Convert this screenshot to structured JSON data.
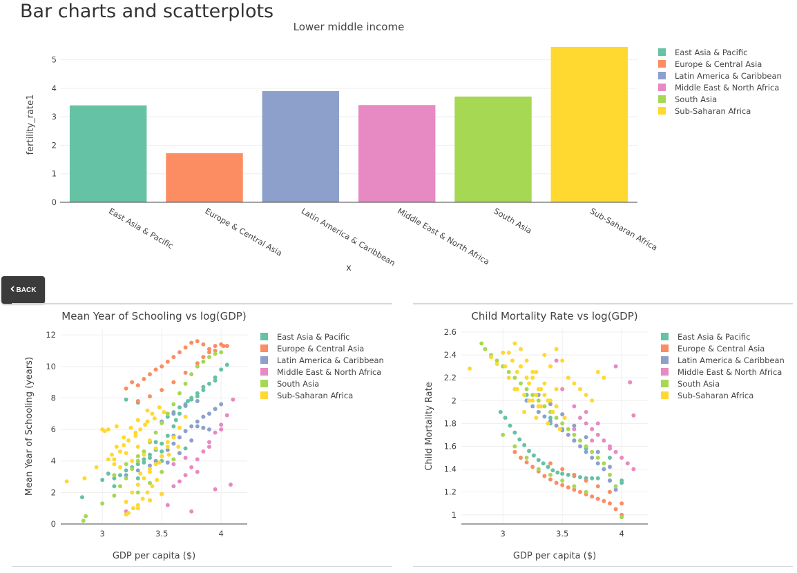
{
  "page": {
    "heading": "Bar charts and scatterplots"
  },
  "back_button": {
    "label": "BACK",
    "icon": "chevron-left-icon"
  },
  "colors": {
    "East Asia & Pacific": "#66c2a5",
    "Europe & Central Asia": "#fc8d62",
    "Latin America & Caribbean": "#8da0cb",
    "Middle East & North Africa": "#e78ac3",
    "South Asia": "#a6d854",
    "Sub-Saharan Africa": "#ffd92f"
  },
  "chart_data": [
    {
      "id": "bar",
      "type": "bar",
      "title": "Lower middle income",
      "xlabel": "x",
      "ylabel": "fertility_rate1",
      "categories": [
        "East Asia & Pacific",
        "Europe & Central Asia",
        "Latin America & Caribbean",
        "Middle East & North Africa",
        "South Asia",
        "Sub-Saharan Africa"
      ],
      "values": [
        3.4,
        1.72,
        3.9,
        3.41,
        3.71,
        5.45
      ],
      "ylim": [
        0,
        5.45
      ],
      "yticks": [
        0,
        1,
        2,
        3,
        4,
        5
      ],
      "legend": [
        "East Asia & Pacific",
        "Europe & Central Asia",
        "Latin America & Caribbean",
        "Middle East & North Africa",
        "South Asia",
        "Sub-Saharan Africa"
      ],
      "legend_position": "top-right",
      "grid": true
    },
    {
      "id": "schooling",
      "type": "scatter",
      "title": "Mean Year of Schooling vs log(GDP)",
      "xlabel": "GDP per capita ($)",
      "ylabel": "Mean Year of Schooling (years)",
      "xlim": [
        2.65,
        4.22
      ],
      "ylim": [
        0,
        12.4
      ],
      "xticks": [
        3,
        3.5,
        4
      ],
      "xtick_labels": [
        "3",
        "3.5",
        "4"
      ],
      "yticks": [
        0,
        2,
        4,
        6,
        8,
        10,
        12
      ],
      "legend": [
        "East Asia & Pacific",
        "Europe & Central Asia",
        "Latin America & Caribbean",
        "Middle East & North Africa",
        "South Asia",
        "Sub-Saharan Africa"
      ],
      "legend_position": "top-right",
      "grid": true,
      "series": [
        {
          "name": "East Asia & Pacific",
          "x": [
            2.83,
            3.0,
            3.05,
            3.1,
            3.15,
            3.2,
            3.25,
            3.3,
            3.35,
            3.4,
            3.45,
            3.5,
            3.55,
            3.6,
            3.62,
            3.65,
            3.7,
            3.72,
            3.75,
            3.8,
            3.85,
            3.9,
            3.95,
            4.0,
            3.2,
            3.3,
            3.4,
            3.5,
            3.6,
            3.7,
            3.8,
            3.35,
            3.45,
            3.55,
            3.65,
            3.75,
            3.85,
            3.95,
            4.05,
            3.1,
            3.3,
            3.5,
            3.7
          ],
          "y": [
            1.7,
            2.8,
            3.2,
            2.9,
            3.1,
            3.4,
            3.6,
            3.8,
            4.1,
            4.4,
            4.7,
            5.1,
            5.6,
            6.2,
            6.6,
            7.0,
            7.5,
            7.8,
            8.0,
            8.3,
            8.7,
            8.9,
            9.3,
            9.8,
            7.9,
            7.7,
            4.2,
            4.6,
            7.1,
            7.6,
            8.1,
            3.9,
            5.2,
            6.8,
            7.4,
            7.9,
            8.5,
            9.1,
            10.1,
            2.4,
            2.9,
            4.0,
            4.8
          ]
        },
        {
          "name": "Europe & Central Asia",
          "x": [
            3.2,
            3.25,
            3.3,
            3.35,
            3.4,
            3.45,
            3.5,
            3.55,
            3.6,
            3.65,
            3.7,
            3.75,
            3.8,
            3.85,
            3.9,
            3.95,
            4.0,
            4.02,
            4.05,
            3.3,
            3.4,
            3.5,
            3.6,
            3.7,
            3.8,
            3.85,
            3.9,
            3.95
          ],
          "y": [
            8.6,
            9.0,
            8.8,
            9.2,
            9.5,
            9.8,
            10.0,
            10.3,
            10.6,
            10.9,
            11.2,
            11.5,
            11.6,
            11.4,
            11.1,
            11.3,
            11.4,
            11.3,
            11.3,
            7.8,
            8.1,
            8.5,
            9.0,
            9.6,
            10.2,
            10.6,
            10.9,
            11.0
          ]
        },
        {
          "name": "Latin America & Caribbean",
          "x": [
            3.2,
            3.3,
            3.4,
            3.45,
            3.5,
            3.55,
            3.6,
            3.65,
            3.7,
            3.75,
            3.8,
            3.85,
            3.9,
            3.95,
            4.0,
            3.5,
            3.6,
            3.7,
            3.8,
            3.9,
            3.55,
            3.65,
            3.75,
            3.85,
            3.4,
            3.6,
            3.8
          ],
          "y": [
            3.1,
            3.4,
            3.7,
            4.0,
            4.3,
            4.7,
            5.1,
            5.5,
            5.9,
            6.2,
            6.5,
            6.8,
            7.0,
            7.3,
            7.6,
            6.5,
            7.0,
            7.5,
            7.8,
            6.0,
            3.9,
            4.5,
            5.3,
            6.1,
            5.2,
            5.6,
            6.2
          ]
        },
        {
          "name": "Middle East & North Africa",
          "x": [
            3.2,
            3.3,
            3.4,
            3.5,
            3.6,
            3.65,
            3.7,
            3.75,
            3.8,
            3.85,
            3.9,
            3.95,
            4.0,
            4.05,
            4.1,
            3.6,
            3.7,
            3.8,
            3.9,
            4.0,
            3.55,
            3.75,
            3.95,
            4.08
          ],
          "y": [
            0.8,
            1.0,
            1.5,
            1.9,
            2.4,
            2.7,
            3.1,
            3.6,
            4.1,
            4.6,
            5.2,
            5.8,
            6.3,
            6.9,
            7.9,
            3.8,
            4.2,
            3.3,
            4.9,
            6.0,
            1.2,
            0.8,
            2.2,
            2.5
          ]
        },
        {
          "name": "South Asia",
          "x": [
            2.84,
            2.86,
            3.0,
            3.1,
            3.15,
            3.2,
            3.25,
            3.3,
            3.35,
            3.4,
            3.45,
            3.5,
            3.55,
            3.6,
            3.65,
            3.7,
            3.75,
            3.8,
            3.85,
            3.9,
            3.95,
            4.0,
            3.3,
            3.4,
            3.5,
            3.6,
            3.1,
            3.2,
            3.3
          ],
          "y": [
            0.2,
            0.5,
            1.3,
            1.8,
            2.4,
            2.9,
            3.5,
            4.0,
            4.6,
            5.2,
            5.8,
            6.4,
            7.0,
            7.6,
            8.3,
            8.9,
            9.5,
            10.0,
            10.3,
            10.6,
            10.8,
            10.9,
            2.0,
            2.6,
            3.3,
            4.1,
            3.1,
            3.8,
            4.3
          ]
        },
        {
          "name": "Sub-Saharan Africa",
          "x": [
            2.7,
            2.85,
            2.95,
            3.0,
            3.02,
            3.05,
            3.08,
            3.1,
            3.12,
            3.15,
            3.18,
            3.2,
            3.22,
            3.25,
            3.28,
            3.3,
            3.32,
            3.35,
            3.38,
            3.4,
            3.42,
            3.45,
            3.48,
            3.5,
            3.55,
            3.6,
            3.65,
            3.7,
            3.22,
            3.26,
            3.3,
            3.34,
            3.38,
            3.42,
            3.46,
            3.1,
            3.2,
            3.3,
            3.4,
            3.15,
            3.25,
            3.35,
            3.45,
            3.55,
            3.3,
            3.38,
            3.28,
            3.36,
            3.44,
            3.52,
            3.05,
            3.12,
            3.18,
            3.24,
            3.32,
            3.4,
            3.48,
            3.56,
            3.64,
            3.2,
            3.3,
            3.4,
            3.5
          ],
          "y": [
            2.7,
            2.9,
            3.6,
            6.0,
            5.9,
            4.1,
            4.4,
            3.8,
            6.2,
            4.6,
            5.0,
            1.4,
            5.3,
            2.0,
            5.6,
            2.5,
            6.0,
            2.9,
            6.5,
            3.3,
            7.0,
            3.8,
            7.4,
            4.3,
            4.9,
            5.5,
            6.1,
            6.8,
            0.7,
            1.0,
            1.2,
            1.6,
            2.0,
            2.4,
            2.8,
            4.1,
            4.5,
            4.9,
            5.3,
            3.6,
            4.0,
            4.4,
            4.8,
            5.2,
            6.6,
            7.2,
            5.8,
            6.3,
            6.7,
            7.1,
            6.0,
            4.9,
            5.5,
            6.1,
            3.2,
            3.5,
            3.9,
            4.4,
            4.9,
            0.6,
            1.0,
            1.5,
            1.9
          ]
        }
      ]
    },
    {
      "id": "mortality",
      "type": "scatter",
      "title": "Child Mortality Rate vs log(GDP)",
      "xlabel": "GDP per capita ($)",
      "ylabel": "Child Mortality Rate",
      "xlim": [
        2.65,
        4.22
      ],
      "ylim": [
        0.92,
        2.63
      ],
      "xticks": [
        3,
        3.5,
        4
      ],
      "xtick_labels": [
        "3",
        "3.5",
        "4"
      ],
      "yticks": [
        1,
        1.2,
        1.4,
        1.6,
        1.8,
        2,
        2.2,
        2.4,
        2.6
      ],
      "legend": [
        "East Asia & Pacific",
        "Europe & Central Asia",
        "Latin America & Caribbean",
        "Middle East & North Africa",
        "South Asia",
        "Sub-Saharan Africa"
      ],
      "legend_position": "top-right",
      "grid": true,
      "series": [
        {
          "name": "East Asia & Pacific",
          "x": [
            2.98,
            3.02,
            3.06,
            3.1,
            3.14,
            3.18,
            3.22,
            3.26,
            3.3,
            3.34,
            3.38,
            3.42,
            3.46,
            3.5,
            3.55,
            3.6,
            3.65,
            3.7,
            3.75,
            3.8,
            3.9,
            4.0,
            3.2,
            3.3,
            3.4,
            3.5,
            3.6,
            3.7,
            3.8,
            3.9,
            4.0,
            3.1,
            3.2,
            3.3,
            3.4
          ],
          "y": [
            1.9,
            1.85,
            1.78,
            1.72,
            1.66,
            1.61,
            1.56,
            1.52,
            1.48,
            1.45,
            1.42,
            1.39,
            1.37,
            1.36,
            1.35,
            1.34,
            1.33,
            1.32,
            1.32,
            1.32,
            1.3,
            1.28,
            2.05,
            1.95,
            1.85,
            1.75,
            1.65,
            1.58,
            1.55,
            1.5,
            1.3,
            2.1,
            2.0,
            1.9,
            1.8
          ]
        },
        {
          "name": "Europe & Central Asia",
          "x": [
            3.1,
            3.15,
            3.2,
            3.25,
            3.3,
            3.35,
            3.4,
            3.45,
            3.5,
            3.55,
            3.6,
            3.65,
            3.7,
            3.75,
            3.8,
            3.85,
            3.9,
            3.95,
            4.0,
            3.4,
            3.5,
            3.6,
            3.7,
            3.8,
            3.9,
            4.0
          ],
          "y": [
            1.55,
            1.5,
            1.46,
            1.42,
            1.38,
            1.34,
            1.31,
            1.28,
            1.26,
            1.24,
            1.22,
            1.2,
            1.18,
            1.16,
            1.14,
            1.12,
            1.1,
            1.05,
            1.0,
            1.45,
            1.4,
            1.35,
            1.3,
            1.25,
            1.2,
            1.1
          ]
        },
        {
          "name": "Latin America & Caribbean",
          "x": [
            3.2,
            3.25,
            3.3,
            3.35,
            3.4,
            3.45,
            3.5,
            3.55,
            3.6,
            3.65,
            3.7,
            3.75,
            3.8,
            3.85,
            3.9,
            3.95,
            3.3,
            3.4,
            3.5,
            3.6,
            3.7,
            3.8,
            3.9
          ],
          "y": [
            2.0,
            1.95,
            1.9,
            1.86,
            1.82,
            1.78,
            1.74,
            1.7,
            1.65,
            1.6,
            1.55,
            1.5,
            1.45,
            1.4,
            1.3,
            1.22,
            2.05,
            1.97,
            1.88,
            1.78,
            1.68,
            1.55,
            1.42
          ]
        },
        {
          "name": "Middle East & North Africa",
          "x": [
            3.4,
            3.5,
            3.6,
            3.65,
            3.7,
            3.75,
            3.8,
            3.85,
            3.9,
            3.95,
            4.0,
            4.05,
            4.1,
            3.45,
            3.55,
            3.7,
            3.8,
            3.95,
            4.07,
            4.1,
            3.6,
            3.75,
            3.9
          ],
          "y": [
            2.3,
            2.1,
            1.95,
            1.85,
            1.8,
            1.75,
            1.7,
            1.65,
            1.6,
            1.55,
            1.5,
            1.45,
            1.4,
            2.35,
            2.2,
            1.9,
            1.8,
            2.3,
            2.16,
            1.87,
            1.75,
            1.65,
            1.58
          ]
        },
        {
          "name": "South Asia",
          "x": [
            2.82,
            2.85,
            2.9,
            2.95,
            3.0,
            3.05,
            3.1,
            3.15,
            3.2,
            3.25,
            3.3,
            3.35,
            3.4,
            3.45,
            3.5,
            3.55,
            3.6,
            3.65,
            3.7,
            3.75,
            3.8,
            3.85,
            3.9,
            3.95,
            4.0,
            3.0,
            3.1,
            3.2,
            3.3,
            3.4,
            3.5,
            3.6,
            3.7
          ],
          "y": [
            2.5,
            2.45,
            2.4,
            2.35,
            2.3,
            2.25,
            2.2,
            2.15,
            2.1,
            2.05,
            2.0,
            1.95,
            1.9,
            1.85,
            1.8,
            1.75,
            1.7,
            1.65,
            1.6,
            1.55,
            1.5,
            1.45,
            1.35,
            1.25,
            0.98,
            1.7,
            1.6,
            1.5,
            1.4,
            1.35,
            1.3,
            1.25,
            1.2
          ]
        },
        {
          "name": "Sub-Saharan Africa",
          "x": [
            2.72,
            2.9,
            2.95,
            3.0,
            3.02,
            3.05,
            3.08,
            3.1,
            3.12,
            3.15,
            3.18,
            3.2,
            3.22,
            3.25,
            3.28,
            3.3,
            3.32,
            3.35,
            3.38,
            3.4,
            3.42,
            3.45,
            3.5,
            3.55,
            3.6,
            3.65,
            3.7,
            3.75,
            3.8,
            3.85,
            3.1,
            3.15,
            3.2,
            3.25,
            3.3,
            3.35,
            3.4,
            3.45,
            3.05,
            3.15,
            3.25,
            3.35,
            3.45,
            3.12,
            3.22,
            3.32,
            3.42,
            3.52,
            3.28,
            3.38,
            3.18,
            3.28,
            3.38,
            3.48
          ],
          "y": [
            2.28,
            2.38,
            2.32,
            2.42,
            2.3,
            2.2,
            2.35,
            2.1,
            2.25,
            2.3,
            2.05,
            2.2,
            2.15,
            2.0,
            2.25,
            1.95,
            2.1,
            2.4,
            2.0,
            2.3,
            1.9,
            2.45,
            2.35,
            2.2,
            2.15,
            2.1,
            2.05,
            2.0,
            2.25,
            2.2,
            2.5,
            2.45,
            2.35,
            2.2,
            2.1,
            2.05,
            2.0,
            1.95,
            2.42,
            2.3,
            2.25,
            2.15,
            2.1,
            2.1,
            2.0,
            1.95,
            1.9,
            1.85,
            2.05,
            2.0,
            1.9,
            1.85,
            1.8,
            1.75
          ]
        }
      ]
    }
  ]
}
